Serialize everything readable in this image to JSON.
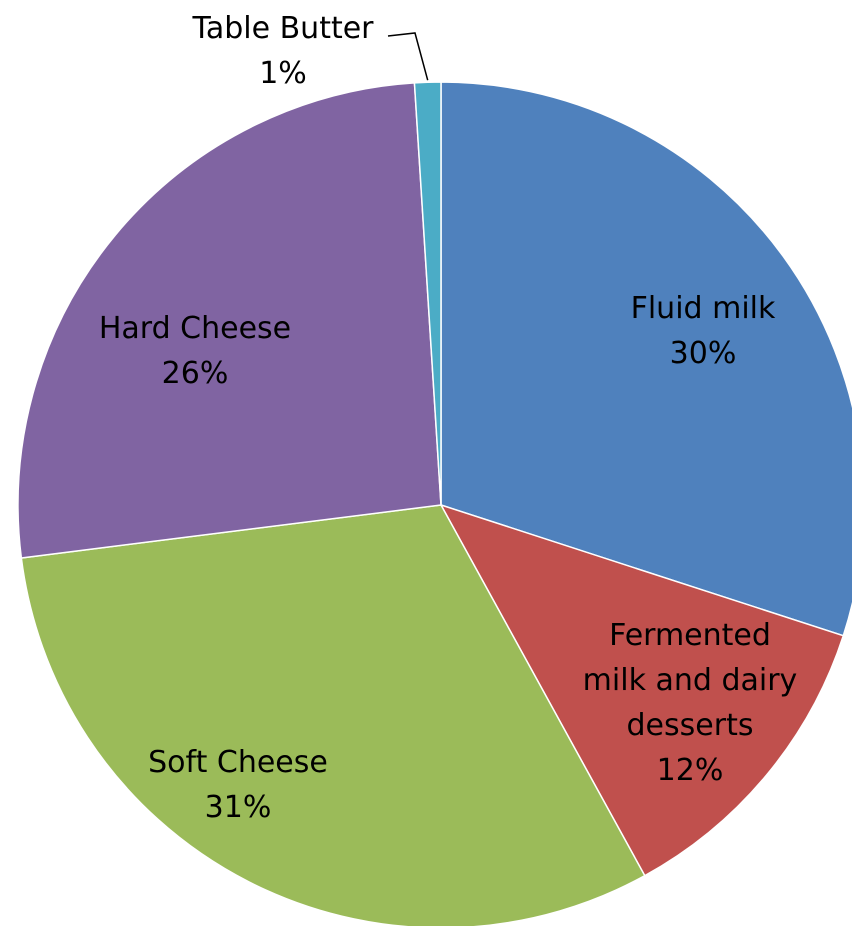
{
  "chart_data": {
    "type": "pie",
    "title": "",
    "start_angle_deg": 0,
    "direction": "clockwise",
    "slices": [
      {
        "name": "Fluid milk",
        "label_lines": [
          "Fluid milk"
        ],
        "value": 30,
        "display": "30%",
        "color": "#4F81BD"
      },
      {
        "name": "Fermented milk and dairy desserts",
        "label_lines": [
          "Fermented",
          "milk and dairy",
          "desserts"
        ],
        "value": 12,
        "display": "12%",
        "color": "#C0504D"
      },
      {
        "name": "Soft Cheese",
        "label_lines": [
          "Soft Cheese"
        ],
        "value": 31,
        "display": "31%",
        "color": "#9BBB59"
      },
      {
        "name": "Hard Cheese",
        "label_lines": [
          "Hard Cheese"
        ],
        "value": 26,
        "display": "26%",
        "color": "#8064A2"
      },
      {
        "name": "Table Butter",
        "label_lines": [
          "Table Butter"
        ],
        "value": 1,
        "display": "1%",
        "color": "#4BACC6"
      }
    ]
  }
}
